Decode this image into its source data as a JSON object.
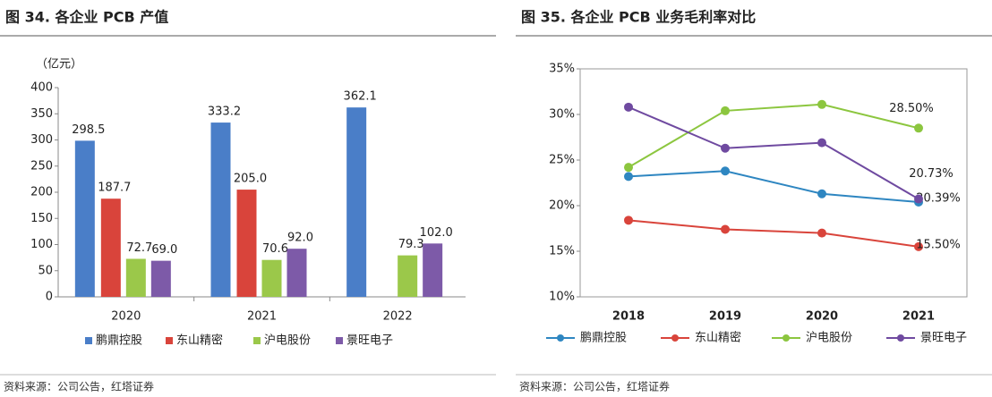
{
  "chart_data": [
    {
      "type": "bar",
      "title": "图 34. 各企业 PCB 产值",
      "unit_label": "（亿元）",
      "categories": [
        "2020",
        "2021",
        "2022"
      ],
      "series": [
        {
          "name": "鹏鼎控股",
          "color": "#4a7ec8",
          "values": [
            298.5,
            333.2,
            362.1
          ],
          "value_labels": [
            "298.5",
            "333.2",
            "362.1"
          ]
        },
        {
          "name": "东山精密",
          "color": "#d9443b",
          "values": [
            187.7,
            205.0,
            null
          ],
          "value_labels": [
            "187.7",
            "205.0",
            null
          ]
        },
        {
          "name": "沪电股份",
          "color": "#9bc84a",
          "values": [
            72.7,
            70.6,
            79.3
          ],
          "value_labels": [
            "72.7",
            "70.6",
            "79.3"
          ]
        },
        {
          "name": "景旺电子",
          "color": "#7d5aa8",
          "values": [
            69.0,
            92.0,
            102.0
          ],
          "value_labels": [
            "69.0",
            "92.0",
            "102.0"
          ]
        }
      ],
      "ylim": [
        0,
        400
      ],
      "yticks": [
        0,
        50,
        100,
        150,
        200,
        250,
        300,
        350,
        400
      ],
      "source": "资料来源：公司公告，红塔证券"
    },
    {
      "type": "line",
      "title": "图 35. 各企业 PCB 业务毛利率对比",
      "categories": [
        "2018",
        "2019",
        "2020",
        "2021"
      ],
      "series": [
        {
          "name": "鹏鼎控股",
          "color": "#2e86c1",
          "values": [
            23.2,
            23.8,
            21.3,
            20.39
          ],
          "value_labels": [
            null,
            null,
            null,
            "20.39%"
          ]
        },
        {
          "name": "东山精密",
          "color": "#d9443b",
          "values": [
            18.4,
            17.4,
            17.0,
            15.5
          ],
          "value_labels": [
            null,
            null,
            null,
            "15.50%"
          ]
        },
        {
          "name": "沪电股份",
          "color": "#8cc63f",
          "values": [
            24.2,
            30.4,
            31.1,
            28.5
          ],
          "value_labels": [
            null,
            null,
            null,
            "28.50%"
          ]
        },
        {
          "name": "景旺电子",
          "color": "#6f4aa0",
          "values": [
            30.8,
            26.3,
            26.9,
            20.73
          ],
          "value_labels": [
            null,
            null,
            null,
            "20.73%"
          ]
        }
      ],
      "ylim": [
        10,
        35
      ],
      "yticks": [
        {
          "value": 10,
          "label": "10%"
        },
        {
          "value": 15,
          "label": "15%"
        },
        {
          "value": 20,
          "label": "20%"
        },
        {
          "value": 25,
          "label": "25%"
        },
        {
          "value": 30,
          "label": "30%"
        },
        {
          "value": 35,
          "label": "35%"
        }
      ],
      "source": "资料来源：公司公告，红塔证券"
    }
  ]
}
